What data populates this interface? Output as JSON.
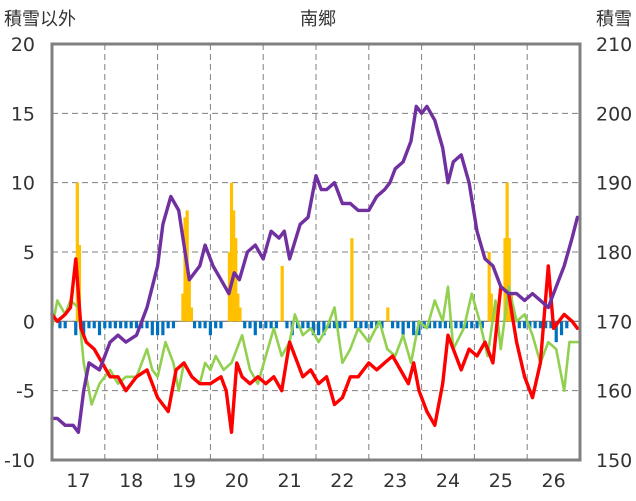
{
  "chart_data": {
    "type": "line",
    "title": "南郷",
    "y_left_label": "積雪以外",
    "y_right_label": "積雪",
    "y_left_range": [
      -10,
      20
    ],
    "y_left_ticks": [
      -10,
      -5,
      0,
      5,
      10,
      15,
      20
    ],
    "y_right_range": [
      150,
      210
    ],
    "y_right_ticks": [
      150,
      160,
      170,
      180,
      190,
      200,
      210
    ],
    "x_range": [
      16.5,
      26.5
    ],
    "x_tick_labels": [
      "17",
      "18",
      "19",
      "20",
      "21",
      "22",
      "23",
      "24",
      "25",
      "26"
    ],
    "x_ticks": [
      17,
      18,
      19,
      20,
      21,
      22,
      23,
      24,
      25,
      26
    ],
    "grid": true,
    "colors": {
      "snow_depth": "#7030a0",
      "max_temp": "#92d050",
      "min_temp": "#ff0000",
      "snowfall": "#ffc000",
      "snow_change": "#0070c0",
      "frame": "#808080"
    },
    "snow_depth": {
      "x": [
        16.5,
        16.6,
        16.75,
        16.9,
        17.0,
        17.1,
        17.2,
        17.4,
        17.5,
        17.6,
        17.75,
        17.9,
        18.1,
        18.3,
        18.5,
        18.6,
        18.75,
        18.9,
        19.0,
        19.1,
        19.3,
        19.4,
        19.55,
        19.7,
        19.85,
        19.95,
        20.05,
        20.2,
        20.35,
        20.5,
        20.65,
        20.8,
        20.9,
        21.0,
        21.2,
        21.35,
        21.5,
        21.6,
        21.7,
        21.85,
        22.0,
        22.15,
        22.3,
        22.5,
        22.65,
        22.8,
        22.9,
        23.0,
        23.15,
        23.3,
        23.4,
        23.5,
        23.6,
        23.75,
        23.9,
        24.0,
        24.1,
        24.25,
        24.4,
        24.55,
        24.7,
        24.85,
        25.0,
        25.15,
        25.3,
        25.45,
        25.6,
        25.75,
        25.9,
        26.05,
        26.2,
        26.35,
        26.45
      ],
      "values": [
        156,
        156,
        155,
        155,
        154,
        160,
        164,
        163,
        165,
        167,
        168,
        167,
        168,
        172,
        178,
        184,
        188,
        186,
        181,
        176,
        178,
        181,
        178,
        176,
        174,
        177,
        176,
        180,
        181,
        179,
        183,
        182,
        183,
        179,
        184,
        185,
        191,
        189,
        189,
        190,
        187,
        187,
        186,
        186,
        188,
        189,
        190,
        192,
        193,
        196,
        201,
        200,
        201,
        199,
        195,
        190,
        193,
        194,
        190,
        183,
        179,
        178,
        175,
        174,
        174,
        173,
        174,
        173,
        172,
        175,
        178,
        182,
        185
      ]
    },
    "max_temp": {
      "x": [
        16.5,
        16.6,
        16.75,
        16.85,
        17.0,
        17.1,
        17.25,
        17.4,
        17.5,
        17.6,
        17.75,
        17.9,
        18.1,
        18.3,
        18.4,
        18.5,
        18.65,
        18.8,
        18.9,
        19.0,
        19.15,
        19.3,
        19.4,
        19.5,
        19.6,
        19.75,
        19.9,
        20.0,
        20.1,
        20.25,
        20.4,
        20.55,
        20.7,
        20.85,
        21.0,
        21.1,
        21.25,
        21.4,
        21.55,
        21.7,
        21.85,
        22.0,
        22.15,
        22.3,
        22.5,
        22.7,
        22.85,
        23.0,
        23.15,
        23.3,
        23.45,
        23.6,
        23.75,
        23.9,
        24.0,
        24.1,
        24.3,
        24.45,
        24.6,
        24.75,
        24.9,
        25.0,
        25.15,
        25.3,
        25.45,
        25.6,
        25.75,
        25.9,
        26.05,
        26.2,
        26.3,
        26.45
      ],
      "values": [
        -0.5,
        1.5,
        0.5,
        1.5,
        1.0,
        -3.0,
        -6.0,
        -4.5,
        -4.0,
        -3.5,
        -4.5,
        -4.0,
        -4.0,
        -2.0,
        -3.5,
        -4.0,
        -1.5,
        -3.0,
        -5.0,
        -3.0,
        -4.0,
        -4.5,
        -3.0,
        -3.5,
        -2.5,
        -3.5,
        -3.0,
        -2.0,
        -1.0,
        -3.5,
        -4.5,
        -2.5,
        -0.5,
        -2.5,
        -1.5,
        0.5,
        -1.0,
        -0.5,
        -1.5,
        -0.5,
        1.0,
        -3.0,
        -2.0,
        -0.5,
        -1.5,
        0.0,
        -2.0,
        -2.5,
        -1.0,
        -3.0,
        0.0,
        -0.5,
        1.5,
        0.0,
        2.5,
        -2.0,
        -0.5,
        2.0,
        0.0,
        -2.5,
        1.5,
        -2.0,
        2.5,
        0.0,
        0.5,
        -1.0,
        -3.0,
        -1.5,
        -2.0,
        -5.0,
        -1.5,
        -1.5
      ]
    },
    "min_temp": {
      "x": [
        16.5,
        16.6,
        16.75,
        16.85,
        16.95,
        17.05,
        17.15,
        17.3,
        17.45,
        17.6,
        17.75,
        17.9,
        18.1,
        18.3,
        18.5,
        18.7,
        18.85,
        19.0,
        19.15,
        19.3,
        19.5,
        19.7,
        19.8,
        19.9,
        20.0,
        20.1,
        20.25,
        20.4,
        20.55,
        20.7,
        20.85,
        21.0,
        21.1,
        21.25,
        21.4,
        21.55,
        21.7,
        21.85,
        22.0,
        22.15,
        22.3,
        22.5,
        22.65,
        22.8,
        22.95,
        23.1,
        23.25,
        23.35,
        23.45,
        23.6,
        23.75,
        23.9,
        24.0,
        24.1,
        24.25,
        24.4,
        24.55,
        24.7,
        24.85,
        25.0,
        25.15,
        25.3,
        25.45,
        25.6,
        25.75,
        25.9,
        26.0,
        26.1,
        26.2,
        26.35,
        26.45
      ],
      "values": [
        0.5,
        0.0,
        0.5,
        1.0,
        4.5,
        -0.5,
        -1.5,
        -2.0,
        -3.0,
        -4.0,
        -4.0,
        -5.0,
        -4.0,
        -3.5,
        -5.5,
        -6.5,
        -3.5,
        -3.0,
        -4.0,
        -4.5,
        -4.5,
        -4.0,
        -5.0,
        -8.0,
        -3.0,
        -4.0,
        -4.5,
        -4.0,
        -4.5,
        -4.0,
        -5.0,
        -1.5,
        -2.5,
        -4.0,
        -3.5,
        -4.5,
        -4.0,
        -6.0,
        -5.5,
        -4.0,
        -4.0,
        -3.0,
        -3.5,
        -3.0,
        -2.5,
        -3.5,
        -4.5,
        -3.0,
        -5.0,
        -6.5,
        -7.5,
        -4.5,
        -1.0,
        -2.0,
        -3.5,
        -2.0,
        -2.5,
        -1.5,
        -3.0,
        2.5,
        2.0,
        -1.5,
        -4.0,
        -5.5,
        -3.0,
        4.0,
        -0.5,
        0.0,
        0.5,
        0.0,
        -0.5
      ]
    },
    "snowfall": {
      "x": [
        16.98,
        17.02,
        18.98,
        19.02,
        19.06,
        19.1,
        19.14,
        19.86,
        19.9,
        19.94,
        19.98,
        20.02,
        20.06,
        20.86,
        22.18,
        22.86,
        24.78,
        24.82,
        24.86,
        24.9,
        24.94,
        25.08,
        25.12,
        25.16,
        25.2
      ],
      "values": [
        10.0,
        5.5,
        2.0,
        7.5,
        8.0,
        3.0,
        1.0,
        5.0,
        10.0,
        8.0,
        6.0,
        2.0,
        1.0,
        4.0,
        6.0,
        1.0,
        5.0,
        2.0,
        1.0,
        1.0,
        1.0,
        6.0,
        10.0,
        6.0,
        2.0
      ]
    },
    "snow_change": {
      "x": [
        16.65,
        16.75,
        16.95,
        17.1,
        17.2,
        17.3,
        17.4,
        17.5,
        17.6,
        17.7,
        17.8,
        17.9,
        18.0,
        18.1,
        18.2,
        18.3,
        18.4,
        18.5,
        18.6,
        18.7,
        18.8,
        19.2,
        19.3,
        19.4,
        19.5,
        19.6,
        19.7,
        20.15,
        20.25,
        20.35,
        20.45,
        20.55,
        20.65,
        20.75,
        20.95,
        21.05,
        21.15,
        21.25,
        21.35,
        21.45,
        21.55,
        21.65,
        21.75,
        21.85,
        21.95,
        22.05,
        22.25,
        22.35,
        22.45,
        22.55,
        22.65,
        22.75,
        22.95,
        23.05,
        23.15,
        23.25,
        23.35,
        23.45,
        23.55,
        23.65,
        23.75,
        23.85,
        23.95,
        24.05,
        24.15,
        24.25,
        24.35,
        24.45,
        24.55,
        24.65,
        25.35,
        25.45,
        25.55,
        25.65,
        25.75,
        25.85,
        25.95,
        26.05,
        26.15,
        26.25
      ],
      "values": [
        -0.5,
        -0.5,
        -1.0,
        -1.0,
        -0.5,
        -0.5,
        -1.0,
        -0.5,
        -0.5,
        -0.5,
        -0.5,
        -0.5,
        -0.5,
        -0.5,
        -0.5,
        -0.5,
        -1.0,
        -1.0,
        -1.0,
        -0.5,
        -0.5,
        -0.5,
        -0.5,
        -0.5,
        -1.0,
        -0.5,
        -0.5,
        -0.5,
        -0.5,
        -1.0,
        -0.5,
        -0.5,
        -0.5,
        -0.5,
        -0.5,
        -1.0,
        -0.5,
        -0.5,
        -0.5,
        -1.0,
        -1.0,
        -1.0,
        -0.5,
        -0.5,
        -0.5,
        -0.5,
        -0.5,
        -0.5,
        -0.5,
        -0.5,
        -0.5,
        -0.5,
        -0.5,
        -0.5,
        -1.0,
        -0.5,
        -1.0,
        -1.0,
        -0.5,
        -0.5,
        -0.5,
        -0.5,
        -0.5,
        -0.5,
        -0.5,
        -0.5,
        -0.5,
        -0.5,
        -0.5,
        -0.5,
        -0.5,
        -0.5,
        -0.5,
        -0.5,
        -0.5,
        -0.5,
        -0.5,
        -1.5,
        -1.0,
        -0.5
      ]
    }
  }
}
